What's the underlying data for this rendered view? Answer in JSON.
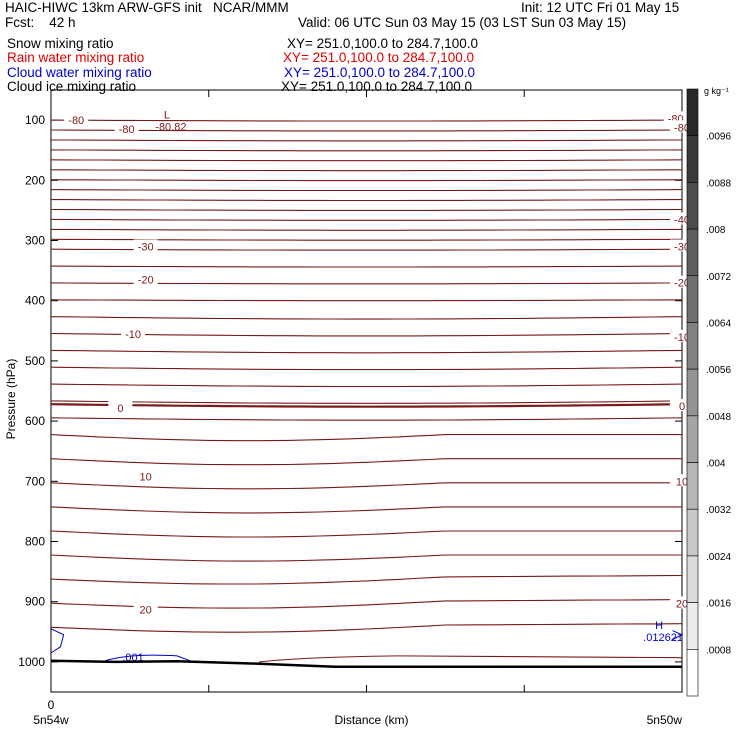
{
  "header": {
    "title_left": "HAIC-HIWC 13km ARW-GFS init   NCAR/MMM",
    "init": "Init: 12 UTC Fri 01 May 15",
    "fcst": "Fcst:    42 h",
    "valid": "Valid: 06 UTC Sun 03 May 15 (03 LST Sun 03 May 15)",
    "fields": [
      {
        "name": "Snow mixing ratio",
        "xy": "XY= 251.0,100.0 to 284.7,100.0",
        "color": "#000000"
      },
      {
        "name": "Rain water mixing ratio",
        "xy": "XY= 251.0,100.0 to 284.7,100.0",
        "color": "#e00000"
      },
      {
        "name": "Cloud water mixing ratio",
        "xy": "XY= 251.0,100.0 to 284.7,100.0",
        "color": "#0000c8"
      },
      {
        "name": "Cloud ice mixing ratio",
        "xy": "XY= 251.0,100.0 to 284.7,100.0",
        "color": "#000000"
      }
    ]
  },
  "chart_data": {
    "type": "line",
    "ylabel": "Pressure (hPa)",
    "xlabel": "Distance (km)",
    "x_start_label": "5n54w",
    "x_end_label": "5n50w",
    "x_zero_label": "0",
    "y_ticks": [
      100,
      200,
      300,
      400,
      500,
      600,
      700,
      800,
      900,
      1000
    ],
    "ylim": [
      50,
      1050
    ],
    "x_range": [
      0,
      1
    ],
    "x_ticks": [
      0,
      0.25,
      0.5,
      0.75,
      1.0
    ],
    "contour_color": "#7a1a1a",
    "contour_labels": [
      {
        "text": "-80",
        "x": 0.04,
        "p": 100
      },
      {
        "text": "-80",
        "x": 0.12,
        "p": 115
      },
      {
        "text": "-80",
        "x": 0.99,
        "p": 97
      },
      {
        "text": "-80",
        "x": 1.01,
        "p": 112
      },
      {
        "text": "-40",
        "x": 1.02,
        "p": 265
      },
      {
        "text": "-30",
        "x": 0.15,
        "p": 310
      },
      {
        "text": "-30",
        "x": 1.02,
        "p": 310
      },
      {
        "text": "-20",
        "x": 0.15,
        "p": 365
      },
      {
        "text": "-20",
        "x": 1.02,
        "p": 370
      },
      {
        "text": "-10",
        "x": 0.13,
        "p": 455
      },
      {
        "text": "-10",
        "x": 1.02,
        "p": 460
      },
      {
        "text": "0",
        "x": 0.11,
        "p": 578
      },
      {
        "text": "0",
        "x": 1.0,
        "p": 575
      },
      {
        "text": "10",
        "x": 0.15,
        "p": 692
      },
      {
        "text": "10",
        "x": 1.0,
        "p": 700
      },
      {
        "text": "20",
        "x": 0.15,
        "p": 913
      },
      {
        "text": "20",
        "x": 1.01,
        "p": 903
      }
    ],
    "extrema": [
      {
        "symbol": "L",
        "value": "-80.82",
        "x": 0.19,
        "p": 107,
        "color": "#7a1a1a"
      },
      {
        "symbol": "H",
        "value": ".012621",
        "x": 0.97,
        "p": 955,
        "color": "#0000c8"
      }
    ],
    "cloud_water_labels": [
      {
        "text": ".001",
        "x": 0.13,
        "p": 992
      }
    ],
    "colorbar": {
      "unit": "g kg⁻¹",
      "ticks": [
        ".0096",
        ".0088",
        ".008",
        ".0072",
        ".0064",
        ".0056",
        ".0048",
        ".004",
        ".0032",
        ".0024",
        ".0016",
        ".0008"
      ]
    }
  }
}
